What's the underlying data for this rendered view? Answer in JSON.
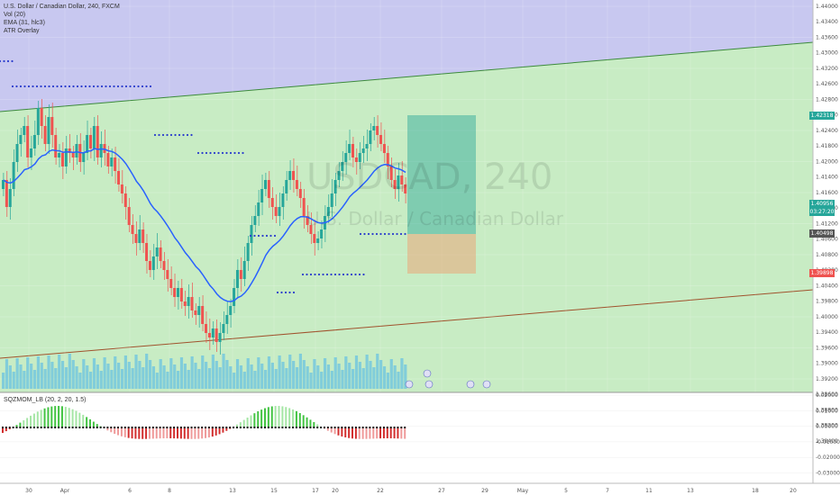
{
  "legend": {
    "symbol": "U.S. Dollar / Canadian Dollar, 240, FXCM",
    "vol": "Vol (20)",
    "ema": "EMA (31, hlc3)",
    "atr": "ATR Overlay",
    "osc": "SQZMOM_LB (20, 2, 20, 1.5)"
  },
  "watermark": {
    "ticker": "USDCAD, 240",
    "name": "U.S. Dollar / Canadian Dollar"
  },
  "price_axis": {
    "ticks": [
      "1.44000",
      "1.43600",
      "1.43200",
      "1.42800",
      "1.42400",
      "1.42000",
      "1.41600",
      "1.41200",
      "1.40800",
      "1.40400",
      "1.40000",
      "1.39600",
      "1.39200",
      "1.38800",
      "1.38400"
    ],
    "extra_ticks": [
      "1.43400",
      "1.43000",
      "1.42600",
      "1.42200",
      "1.41800",
      "1.41400",
      "1.41000",
      "1.40600",
      "1.40200",
      "1.39800",
      "1.39400",
      "1.39000",
      "1.38600",
      "1.38200"
    ],
    "tags": [
      {
        "label": "1.42318",
        "color": "#26a69a"
      },
      {
        "label": "1.40956",
        "color": "#26a69a"
      },
      {
        "label": "03:27:20",
        "color": "#26a69a"
      },
      {
        "label": "1.40498",
        "color": "#555555"
      },
      {
        "label": "1.39898",
        "color": "#ef5350"
      }
    ]
  },
  "osc_axis": {
    "ticks": [
      "0.02000",
      "0.01000",
      "0.00000",
      "-0.01000",
      "-0.02000",
      "-0.03000"
    ]
  },
  "time_axis": {
    "labels": [
      "30",
      "Apr",
      "6",
      "8",
      "13",
      "15",
      "17",
      "20",
      "22",
      "27",
      "29",
      "May",
      "5",
      "7",
      "11",
      "13",
      "18",
      "20"
    ]
  },
  "colors": {
    "up": "#26a69a",
    "down": "#ef5350",
    "ema": "#2962ff",
    "bg_green": "#c8ecc4",
    "bg_purple": "#c8c8f0"
  }
}
